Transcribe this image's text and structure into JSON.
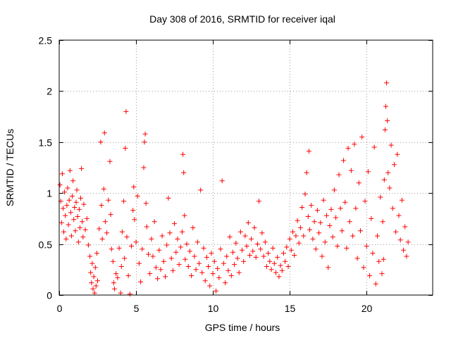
{
  "chart_data": {
    "type": "scatter",
    "title": "Day 308 of 2016, SRMTID for receiver iqal",
    "xlabel": "GPS time / hours",
    "ylabel": "SRMTID / TECUs",
    "xlim": [
      0,
      24.3
    ],
    "ylim": [
      0,
      2.5
    ],
    "grid": true,
    "marker": "+",
    "marker_color": "#ff0000",
    "x_ticks": [
      0,
      5,
      10,
      15,
      20
    ],
    "x_tick_labels": [
      "0",
      "5",
      "10",
      "15",
      "20"
    ],
    "y_ticks": [
      0,
      0.5,
      1,
      1.5,
      2,
      2.5
    ],
    "y_tick_labels": [
      "0",
      "0.5",
      "1",
      "1.5",
      "2",
      "2.5"
    ],
    "series": [
      {
        "name": "SRMTID",
        "points": [
          [
            0.05,
            1.08
          ],
          [
            0.1,
            0.92
          ],
          [
            0.15,
            0.71
          ],
          [
            0.2,
            1.19
          ],
          [
            0.25,
            0.85
          ],
          [
            0.3,
            0.62
          ],
          [
            0.35,
            1.01
          ],
          [
            0.4,
            0.78
          ],
          [
            0.45,
            0.55
          ],
          [
            0.5,
            0.88
          ],
          [
            0.55,
            1.05
          ],
          [
            0.6,
            0.69
          ],
          [
            0.65,
            0.93
          ],
          [
            0.7,
            1.22
          ],
          [
            0.75,
            0.81
          ],
          [
            0.8,
            0.58
          ],
          [
            0.85,
            0.97
          ],
          [
            0.9,
            1.12
          ],
          [
            0.95,
            0.74
          ],
          [
            1.0,
            0.86
          ],
          [
            1.05,
            0.63
          ],
          [
            1.1,
            0.91
          ],
          [
            1.15,
            1.03
          ],
          [
            1.2,
            0.77
          ],
          [
            1.25,
            0.52
          ],
          [
            1.3,
            0.84
          ],
          [
            1.35,
            0.66
          ],
          [
            1.4,
            0.95
          ],
          [
            1.45,
            1.24
          ],
          [
            1.5,
            0.72
          ],
          [
            1.55,
            0.57
          ],
          [
            1.6,
            0.89
          ],
          [
            1.7,
            0.64
          ],
          [
            1.8,
            0.75
          ],
          [
            1.9,
            0.49
          ],
          [
            2.0,
            0.38
          ],
          [
            2.05,
            0.22
          ],
          [
            2.1,
            0.12
          ],
          [
            2.15,
            0.31
          ],
          [
            2.2,
            0.06
          ],
          [
            2.25,
            0.18
          ],
          [
            2.3,
            0.02
          ],
          [
            2.35,
            0.27
          ],
          [
            2.4,
            0.09
          ],
          [
            2.45,
            0.41
          ],
          [
            2.5,
            0.14
          ],
          [
            2.6,
            0.65
          ],
          [
            2.7,
            1.5
          ],
          [
            2.75,
            0.88
          ],
          [
            2.8,
            0.55
          ],
          [
            2.9,
            1.04
          ],
          [
            2.95,
            1.59
          ],
          [
            3.0,
            0.72
          ],
          [
            3.1,
            0.61
          ],
          [
            3.2,
            0.93
          ],
          [
            3.3,
            1.31
          ],
          [
            3.35,
            0.79
          ],
          [
            3.4,
            0.45
          ],
          [
            3.5,
            0.33
          ],
          [
            3.55,
            0.12
          ],
          [
            3.6,
            0.06
          ],
          [
            3.7,
            0.21
          ],
          [
            3.8,
            0.17
          ],
          [
            3.9,
            0.46
          ],
          [
            4.0,
            0.02
          ],
          [
            4.05,
            0.28
          ],
          [
            4.1,
            0.62
          ],
          [
            4.2,
            0.92
          ],
          [
            4.25,
            0.36
          ],
          [
            4.3,
            1.44
          ],
          [
            4.35,
            1.8
          ],
          [
            4.4,
            0.57
          ],
          [
            4.5,
            0.19
          ],
          [
            4.6,
            0.01
          ],
          [
            4.7,
            0.48
          ],
          [
            4.8,
            0.83
          ],
          [
            4.85,
            1.06
          ],
          [
            4.9,
            0.74
          ],
          [
            5.0,
            0.52
          ],
          [
            5.1,
            0.97
          ],
          [
            5.2,
            0.31
          ],
          [
            5.3,
            0.13
          ],
          [
            5.4,
            0.45
          ],
          [
            5.5,
            1.25
          ],
          [
            5.55,
            1.5
          ],
          [
            5.6,
            1.58
          ],
          [
            5.65,
            0.9
          ],
          [
            5.7,
            0.67
          ],
          [
            5.8,
            0.4
          ],
          [
            5.9,
            0.21
          ],
          [
            6.0,
            0.55
          ],
          [
            6.1,
            0.38
          ],
          [
            6.2,
            0.72
          ],
          [
            6.3,
            0.27
          ],
          [
            6.4,
            0.16
          ],
          [
            6.5,
            0.44
          ],
          [
            6.6,
            0.25
          ],
          [
            6.7,
            0.58
          ],
          [
            6.8,
            0.33
          ],
          [
            6.9,
            0.18
          ],
          [
            7.0,
            0.49
          ],
          [
            7.1,
            0.95
          ],
          [
            7.2,
            0.61
          ],
          [
            7.3,
            0.36
          ],
          [
            7.4,
            0.24
          ],
          [
            7.5,
            0.7
          ],
          [
            7.6,
            0.42
          ],
          [
            7.7,
            0.55
          ],
          [
            7.8,
            0.3
          ],
          [
            7.9,
            0.47
          ],
          [
            8.0,
            0.62
          ],
          [
            8.05,
            1.38
          ],
          [
            8.1,
            1.2
          ],
          [
            8.15,
            0.78
          ],
          [
            8.2,
            0.35
          ],
          [
            8.3,
            0.5
          ],
          [
            8.4,
            0.28
          ],
          [
            8.5,
            0.43
          ],
          [
            8.6,
            0.19
          ],
          [
            8.7,
            0.66
          ],
          [
            8.8,
            0.38
          ],
          [
            8.9,
            0.25
          ],
          [
            9.0,
            0.52
          ],
          [
            9.1,
            0.31
          ],
          [
            9.2,
            1.03
          ],
          [
            9.3,
            0.22
          ],
          [
            9.4,
            0.46
          ],
          [
            9.5,
            0.14
          ],
          [
            9.6,
            0.37
          ],
          [
            9.7,
            0.28
          ],
          [
            9.8,
            0.09
          ],
          [
            9.9,
            0.41
          ],
          [
            10.0,
            0.21
          ],
          [
            10.1,
            0.33
          ],
          [
            10.2,
            0.04
          ],
          [
            10.3,
            0.26
          ],
          [
            10.4,
            0.17
          ],
          [
            10.5,
            0.45
          ],
          [
            10.6,
            1.12
          ],
          [
            10.7,
            0.31
          ],
          [
            10.8,
            0.12
          ],
          [
            10.9,
            0.38
          ],
          [
            11.0,
            0.24
          ],
          [
            11.1,
            0.57
          ],
          [
            11.2,
            0.19
          ],
          [
            11.3,
            0.42
          ],
          [
            11.4,
            0.3
          ],
          [
            11.5,
            0.51
          ],
          [
            11.6,
            0.36
          ],
          [
            11.7,
            0.22
          ],
          [
            11.8,
            0.62
          ],
          [
            11.9,
            0.44
          ],
          [
            12.0,
            0.33
          ],
          [
            12.1,
            0.58
          ],
          [
            12.2,
            0.48
          ],
          [
            12.3,
            0.71
          ],
          [
            12.4,
            0.39
          ],
          [
            12.5,
            0.55
          ],
          [
            12.6,
            0.43
          ],
          [
            12.7,
            0.66
          ],
          [
            12.8,
            0.37
          ],
          [
            12.9,
            0.5
          ],
          [
            13.0,
            0.92
          ],
          [
            13.1,
            0.45
          ],
          [
            13.2,
            0.61
          ],
          [
            13.3,
            0.38
          ],
          [
            13.4,
            0.52
          ],
          [
            13.5,
            0.28
          ],
          [
            13.6,
            0.41
          ],
          [
            13.7,
            0.33
          ],
          [
            13.8,
            0.25
          ],
          [
            13.9,
            0.46
          ],
          [
            14.0,
            0.31
          ],
          [
            14.1,
            0.22
          ],
          [
            14.2,
            0.37
          ],
          [
            14.3,
            0.18
          ],
          [
            14.4,
            0.29
          ],
          [
            14.5,
            0.24
          ],
          [
            14.6,
            0.41
          ],
          [
            14.7,
            0.33
          ],
          [
            14.8,
            0.47
          ],
          [
            14.9,
            0.28
          ],
          [
            15.0,
            0.55
          ],
          [
            15.1,
            0.44
          ],
          [
            15.2,
            0.62
          ],
          [
            15.3,
            0.39
          ],
          [
            15.4,
            0.58
          ],
          [
            15.5,
            0.73
          ],
          [
            15.6,
            0.51
          ],
          [
            15.7,
            0.66
          ],
          [
            15.8,
            0.86
          ],
          [
            15.9,
            0.58
          ],
          [
            16.0,
            0.99
          ],
          [
            16.1,
            1.2
          ],
          [
            16.2,
            0.77
          ],
          [
            16.25,
            1.41
          ],
          [
            16.3,
            0.64
          ],
          [
            16.4,
            0.88
          ],
          [
            16.5,
            0.55
          ],
          [
            16.6,
            0.72
          ],
          [
            16.7,
            0.45
          ],
          [
            16.8,
            0.83
          ],
          [
            16.9,
            0.61
          ],
          [
            17.0,
            0.71
          ],
          [
            17.1,
            0.38
          ],
          [
            17.2,
            0.93
          ],
          [
            17.3,
            0.52
          ],
          [
            17.4,
            0.78
          ],
          [
            17.5,
            0.27
          ],
          [
            17.6,
            0.68
          ],
          [
            17.7,
            0.84
          ],
          [
            17.8,
            0.57
          ],
          [
            17.9,
            1.03
          ],
          [
            18.0,
            0.76
          ],
          [
            18.1,
            0.48
          ],
          [
            18.2,
            1.18
          ],
          [
            18.3,
            0.85
          ],
          [
            18.4,
            0.63
          ],
          [
            18.5,
            1.32
          ],
          [
            18.6,
            0.91
          ],
          [
            18.7,
            0.46
          ],
          [
            18.8,
            1.44
          ],
          [
            18.9,
            0.72
          ],
          [
            19.0,
            1.22
          ],
          [
            19.1,
            0.58
          ],
          [
            19.2,
            1.48
          ],
          [
            19.3,
            0.85
          ],
          [
            19.4,
            0.36
          ],
          [
            19.5,
            1.1
          ],
          [
            19.6,
            0.63
          ],
          [
            19.7,
            1.55
          ],
          [
            19.8,
            0.27
          ],
          [
            19.9,
            0.92
          ],
          [
            20.0,
            0.48
          ],
          [
            20.1,
            1.21
          ],
          [
            20.2,
            0.19
          ],
          [
            20.3,
            0.75
          ],
          [
            20.4,
            0.41
          ],
          [
            20.5,
            1.45
          ],
          [
            20.6,
            0.11
          ],
          [
            20.7,
            0.58
          ],
          [
            20.8,
            0.33
          ],
          [
            20.9,
            0.96
          ],
          [
            21.0,
            0.21
          ],
          [
            21.05,
            0.72
          ],
          [
            21.1,
            0.35
          ],
          [
            21.15,
            1.13
          ],
          [
            21.2,
            1.62
          ],
          [
            21.25,
            1.85
          ],
          [
            21.3,
            2.08
          ],
          [
            21.35,
            1.71
          ],
          [
            21.4,
            1.2
          ],
          [
            21.5,
            1.05
          ],
          [
            21.6,
            1.47
          ],
          [
            21.7,
            0.85
          ],
          [
            21.8,
            1.28
          ],
          [
            21.9,
            0.62
          ],
          [
            22.0,
            1.38
          ],
          [
            22.1,
            0.78
          ],
          [
            22.2,
            0.54
          ],
          [
            22.3,
            0.93
          ],
          [
            22.4,
            0.44
          ],
          [
            22.5,
            0.67
          ],
          [
            22.6,
            0.38
          ],
          [
            22.7,
            0.52
          ]
        ]
      }
    ]
  }
}
